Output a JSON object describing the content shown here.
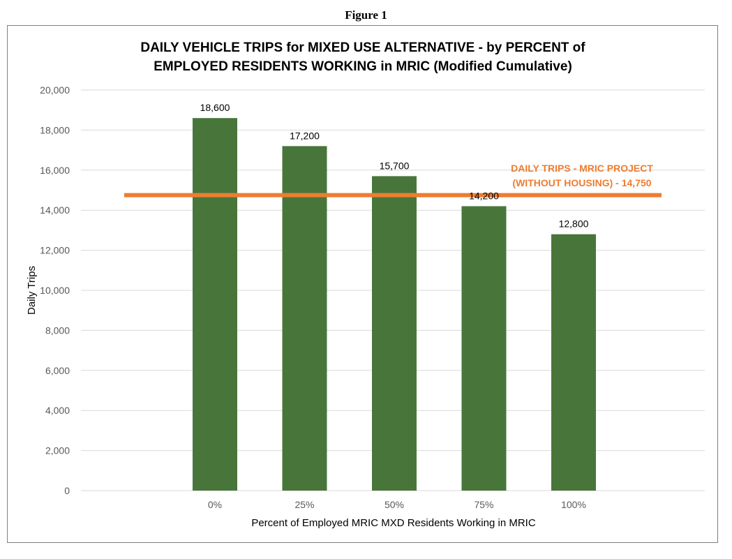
{
  "figure_caption": "Figure 1",
  "chart_data": {
    "type": "bar",
    "title": [
      "DAILY VEHICLE TRIPS for MIXED USE ALTERNATIVE  - by PERCENT of",
      "EMPLOYED RESIDENTS WORKING in MRIC (Modified Cumulative)"
    ],
    "xlabel": "Percent of Employed MRIC MXD Residents Working in MRIC",
    "ylabel": "Daily Trips",
    "categories": [
      "0%",
      "25%",
      "50%",
      "75%",
      "100%"
    ],
    "values": [
      18600,
      17200,
      15700,
      14200,
      12800
    ],
    "data_labels": [
      "18,600",
      "17,200",
      "15,700",
      "14,200",
      "12,800"
    ],
    "ylim": [
      0,
      20000
    ],
    "yticks": [
      0,
      2000,
      4000,
      6000,
      8000,
      10000,
      12000,
      14000,
      16000,
      18000,
      20000
    ],
    "ytick_labels": [
      "0",
      "2,000",
      "4,000",
      "6,000",
      "8,000",
      "10,000",
      "12,000",
      "14,000",
      "16,000",
      "18,000",
      "20,000"
    ],
    "grid": true,
    "legend": "none",
    "reference_line": {
      "value": 14750,
      "label_lines": [
        "DAILY TRIPS - MRIC PROJECT",
        "(WITHOUT HOUSING) - 14,750"
      ],
      "color": "#ED7D31"
    },
    "colors": {
      "bar": "#48763A",
      "grid": "#D9D9D9",
      "tick_text": "#595959"
    }
  }
}
